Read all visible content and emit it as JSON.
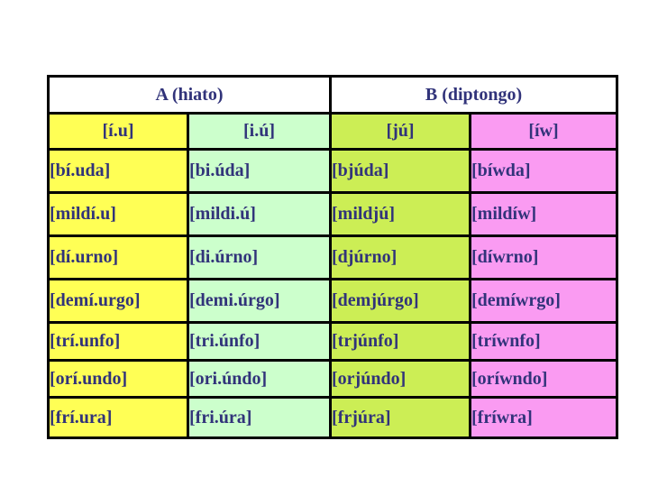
{
  "page": {
    "background_color": "#ffffff",
    "text_color": "#31337a",
    "border_color": "#000000",
    "header_background": "#ffffff"
  },
  "table": {
    "group_headers": [
      {
        "label": "A (hiato)",
        "span": 2
      },
      {
        "label": "B (diptongo)",
        "span": 2
      }
    ],
    "columns": [
      {
        "key": "[í.u]",
        "color": "#ffff55"
      },
      {
        "key": "[i.ú]",
        "color": "#ccffcc"
      },
      {
        "key": "[jú]",
        "color": "#ccee55"
      },
      {
        "key": "[íw]",
        "color": "#fa9bf2"
      }
    ],
    "rows": [
      [
        "[bí.uda]",
        "[bi.úda]",
        "[bjúda]",
        "[bíwda]"
      ],
      [
        "[mildí.u]",
        "[mildi.ú]",
        "[mildjú]",
        "[mildíw]"
      ],
      [
        "[dí.urno]",
        "[di.úrno]",
        "[djúrno]",
        "[díwrno]"
      ],
      [
        "[demí.urgo]",
        "[demi.úrgo]",
        "[demjúrgo]",
        "[demíwrgo]"
      ],
      [
        "[trí.unfo]",
        "[tri.únfo]",
        "[trjúnfo]",
        "[tríwnfo]"
      ],
      [
        "[orí.undo]",
        "[ori.úndo]",
        "[orjúndo]",
        "[oríwndo]"
      ],
      [
        "[frí.ura]",
        "[fri.úra]",
        "[frjúra]",
        "[fríwra]"
      ]
    ]
  }
}
